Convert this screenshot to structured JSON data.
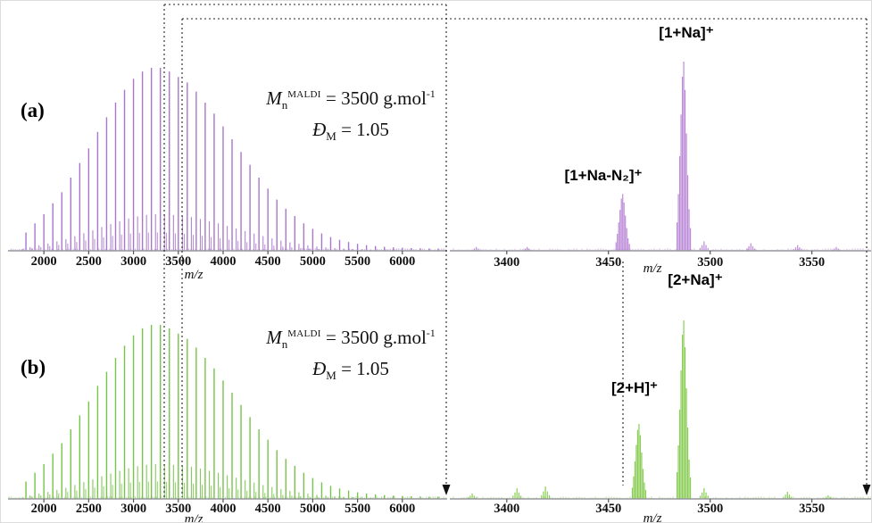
{
  "panels": {
    "a": {
      "label": "(a)",
      "annotation": {
        "m_symbol": "M",
        "m_sub": "n",
        "m_sup": "MALDI",
        "mn_rest": " = 3500 g.mol",
        "mn_exponent": "-1",
        "d_symbol": "Đ",
        "d_sub": "M",
        "d_rest": " = 1.05"
      }
    },
    "b": {
      "label": "(b)",
      "annotation": {
        "m_symbol": "M",
        "m_sub": "n",
        "m_sup": "MALDI",
        "mn_rest": " = 3500 g.mol",
        "mn_exponent": "-1",
        "d_symbol": "Đ",
        "d_sub": "M",
        "d_rest": " = 1.05"
      }
    }
  },
  "chart_data": [
    {
      "id": "a-full",
      "type": "line",
      "subtype": "maldi-mass-spectrum-full",
      "title": "",
      "xlabel": "m/z",
      "ylabel": "",
      "color": "#a46fc9",
      "x_range": [
        1600,
        6500
      ],
      "x_ticks": [
        2000,
        2500,
        3000,
        3500,
        4000,
        4500,
        5000,
        5500,
        6000
      ],
      "ylim": [
        0,
        100
      ],
      "grid": false,
      "peaks_mz": [
        1800,
        1900,
        2000,
        2100,
        2200,
        2300,
        2400,
        2500,
        2600,
        2700,
        2800,
        2900,
        3000,
        3100,
        3200,
        3300,
        3400,
        3500,
        3600,
        3700,
        3800,
        3900,
        4000,
        4100,
        4200,
        4300,
        4400,
        4500,
        4600,
        4700,
        4800,
        4900,
        5000,
        5100,
        5200,
        5300,
        5400,
        5500,
        5600,
        5700,
        5800,
        5900,
        6000,
        6100,
        6200,
        6300,
        6400
      ],
      "peaks_intensity": [
        10,
        15,
        20,
        26,
        32,
        40,
        48,
        56,
        65,
        73,
        81,
        88,
        94,
        98,
        100,
        100,
        98,
        95,
        92,
        87,
        81,
        75,
        68,
        61,
        54,
        47,
        40,
        34,
        28,
        23,
        19,
        15,
        12,
        9.5,
        7.5,
        6,
        4.8,
        3.8,
        3.1,
        2.6,
        2.2,
        1.9,
        1.7,
        1.5,
        1.4,
        1.3,
        1.2
      ],
      "zoom_window": [
        3375,
        3575
      ],
      "annotations": []
    },
    {
      "id": "a-zoom",
      "type": "line",
      "subtype": "maldi-mass-spectrum-zoom",
      "title": "",
      "xlabel": "m/z",
      "ylabel": "",
      "color": "#b886d6",
      "x_range": [
        3372,
        3580
      ],
      "x_ticks": [
        3400,
        3450,
        3500,
        3550
      ],
      "ylim": [
        0,
        100
      ],
      "grid": false,
      "peaks_mz": [
        3385,
        3410,
        3457,
        3487,
        3497,
        3520,
        3543,
        3562
      ],
      "peaks_intensity": [
        2,
        2,
        30,
        100,
        5,
        4,
        3,
        2
      ],
      "annotations": [
        {
          "text": "[1+Na-N₂]⁺",
          "mz": 3457
        },
        {
          "text": "[1+Na]⁺",
          "mz": 3487
        }
      ]
    },
    {
      "id": "b-full",
      "type": "line",
      "subtype": "maldi-mass-spectrum-full",
      "title": "",
      "xlabel": "m/z",
      "ylabel": "",
      "color": "#6fc13e",
      "x_range": [
        1600,
        6500
      ],
      "x_ticks": [
        2000,
        2500,
        3000,
        3500,
        4000,
        4500,
        5000,
        5500,
        6000
      ],
      "ylim": [
        0,
        100
      ],
      "grid": false,
      "peaks_mz": [
        1800,
        1900,
        2000,
        2100,
        2200,
        2300,
        2400,
        2500,
        2600,
        2700,
        2800,
        2900,
        3000,
        3100,
        3200,
        3300,
        3400,
        3500,
        3600,
        3700,
        3800,
        3900,
        4000,
        4100,
        4200,
        4300,
        4400,
        4500,
        4600,
        4700,
        4800,
        4900,
        5000,
        5100,
        5200,
        5300,
        5400,
        5500,
        5600,
        5700,
        5800,
        5900,
        6000,
        6100,
        6200,
        6300,
        6400
      ],
      "peaks_intensity": [
        10,
        15,
        20,
        26,
        32,
        40,
        48,
        56,
        65,
        73,
        81,
        88,
        94,
        98,
        100,
        100,
        98,
        95,
        92,
        87,
        81,
        75,
        68,
        61,
        54,
        47,
        40,
        34,
        28,
        23,
        19,
        15,
        12,
        9.5,
        7.5,
        6,
        4.8,
        3.8,
        3.1,
        2.6,
        2.2,
        1.9,
        1.7,
        1.5,
        1.4,
        1.3,
        1.2
      ],
      "zoom_window": [
        3375,
        3575
      ],
      "annotations": []
    },
    {
      "id": "b-zoom",
      "type": "line",
      "subtype": "maldi-mass-spectrum-zoom",
      "title": "",
      "xlabel": "m/z",
      "ylabel": "",
      "color": "#84cb4d",
      "x_range": [
        3372,
        3580
      ],
      "x_ticks": [
        3400,
        3450,
        3500,
        3550
      ],
      "ylim": [
        0,
        100
      ],
      "grid": false,
      "peaks_mz": [
        3383,
        3405,
        3419,
        3465,
        3487,
        3497,
        3538,
        3558
      ],
      "peaks_intensity": [
        3,
        6,
        7,
        42,
        100,
        6,
        4,
        2
      ],
      "annotations": [
        {
          "text": "[2+H]⁺",
          "mz": 3465
        },
        {
          "text": "[2+Na]⁺",
          "mz": 3487
        }
      ]
    }
  ]
}
